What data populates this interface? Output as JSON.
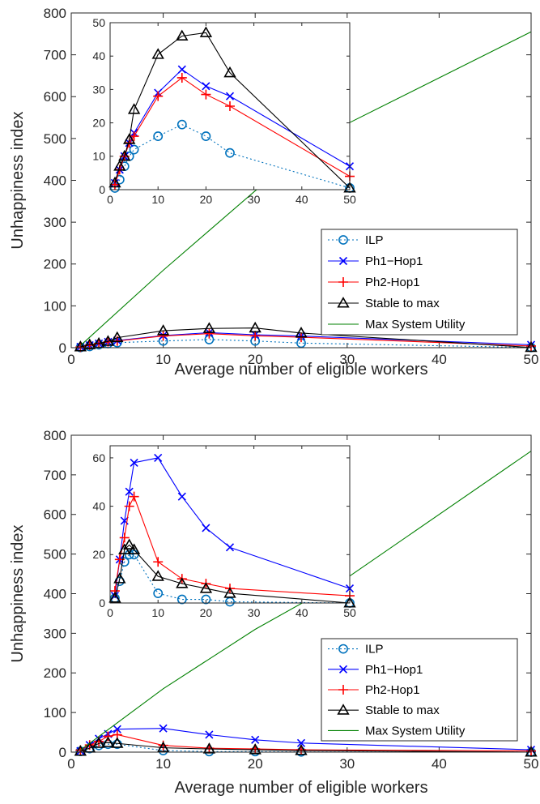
{
  "series_styles": [
    {
      "color": "#0072BD",
      "marker": "circle",
      "dash": "dotted"
    },
    {
      "color": "#0000FF",
      "marker": "x",
      "dash": "solid"
    },
    {
      "color": "#FF0000",
      "marker": "plus",
      "dash": "solid"
    },
    {
      "color": "#000000",
      "marker": "triangle",
      "dash": "solid"
    },
    {
      "color": "#008000",
      "marker": "none",
      "dash": "solid"
    }
  ],
  "chart_data": [
    {
      "type": "line",
      "xlabel": "Average number of eligible workers",
      "ylabel": "Unhappiness index",
      "xlim": [
        0,
        50
      ],
      "ylim": [
        0,
        800
      ],
      "xticks": [
        0,
        10,
        20,
        30,
        40,
        50
      ],
      "yticks": [
        0,
        100,
        200,
        300,
        400,
        500,
        600,
        700,
        800
      ],
      "legend": "lower-right",
      "series": [
        {
          "name": "ILP",
          "x": [
            1,
            2,
            3,
            4,
            5,
            10,
            15,
            20,
            25,
            50
          ],
          "y": [
            0.5,
            3,
            7,
            10,
            12,
            16,
            19.5,
            16,
            11,
            0.5
          ]
        },
        {
          "name": "Ph1−Hop1",
          "x": [
            1,
            2,
            3,
            4,
            5,
            10,
            15,
            20,
            25,
            50
          ],
          "y": [
            2,
            6,
            10,
            14,
            17,
            29,
            36,
            31,
            28,
            7
          ]
        },
        {
          "name": "Ph2-Hop1",
          "x": [
            1,
            2,
            3,
            4,
            5,
            10,
            15,
            20,
            25,
            50
          ],
          "y": [
            1.5,
            6,
            10,
            14,
            16,
            28,
            33.5,
            28.5,
            25,
            4
          ]
        },
        {
          "name": "Stable to max",
          "x": [
            1,
            2,
            3,
            4,
            5,
            10,
            15,
            20,
            25,
            50
          ],
          "y": [
            2,
            7,
            10,
            15,
            24,
            40.5,
            46,
            47,
            35,
            0.5
          ]
        },
        {
          "name": "Max System Utility",
          "x": [
            1,
            10,
            20,
            30,
            50
          ],
          "y": [
            5,
            185,
            375,
            535,
            755
          ]
        }
      ],
      "inset": {
        "xlim": [
          0,
          50
        ],
        "ylim": [
          0,
          50
        ],
        "xticks": [
          0,
          10,
          20,
          30,
          40,
          50
        ],
        "yticks": [
          0,
          10,
          20,
          30,
          40,
          50
        ]
      }
    },
    {
      "type": "line",
      "xlabel": "Average number of eligible workers",
      "ylabel": "Unhappiness index",
      "xlim": [
        0,
        50
      ],
      "ylim": [
        0,
        800
      ],
      "xticks": [
        0,
        10,
        20,
        30,
        40,
        50
      ],
      "yticks": [
        0,
        100,
        200,
        300,
        400,
        500,
        600,
        700,
        800
      ],
      "legend": "lower-right",
      "series": [
        {
          "name": "ILP",
          "x": [
            1,
            2,
            3,
            4,
            5,
            10,
            15,
            20,
            25,
            50
          ],
          "y": [
            2,
            9,
            17,
            20,
            20,
            4,
            1.5,
            1.5,
            0.5,
            0
          ]
        },
        {
          "name": "Ph1−Hop1",
          "x": [
            1,
            2,
            3,
            4,
            5,
            10,
            15,
            20,
            25,
            50
          ],
          "y": [
            3,
            18,
            34,
            46,
            58,
            60,
            44,
            31,
            23,
            6
          ]
        },
        {
          "name": "Ph2-Hop1",
          "x": [
            1,
            2,
            3,
            4,
            5,
            10,
            15,
            20,
            25,
            50
          ],
          "y": [
            5,
            18,
            27,
            40,
            44,
            17,
            10,
            8,
            6,
            3
          ]
        },
        {
          "name": "Stable to max",
          "x": [
            1,
            2,
            3,
            4,
            5,
            10,
            15,
            20,
            25,
            50
          ],
          "y": [
            2,
            10,
            22,
            24,
            22,
            11,
            8,
            6,
            4,
            0
          ]
        },
        {
          "name": "Max System Utility",
          "x": [
            1,
            10,
            20,
            30,
            50
          ],
          "y": [
            5,
            160,
            310,
            440,
            760
          ]
        }
      ],
      "inset": {
        "xlim": [
          0,
          50
        ],
        "ylim": [
          0,
          65
        ],
        "xticks": [
          0,
          10,
          20,
          30,
          40,
          50
        ],
        "yticks": [
          0,
          20,
          40,
          60
        ]
      }
    }
  ]
}
